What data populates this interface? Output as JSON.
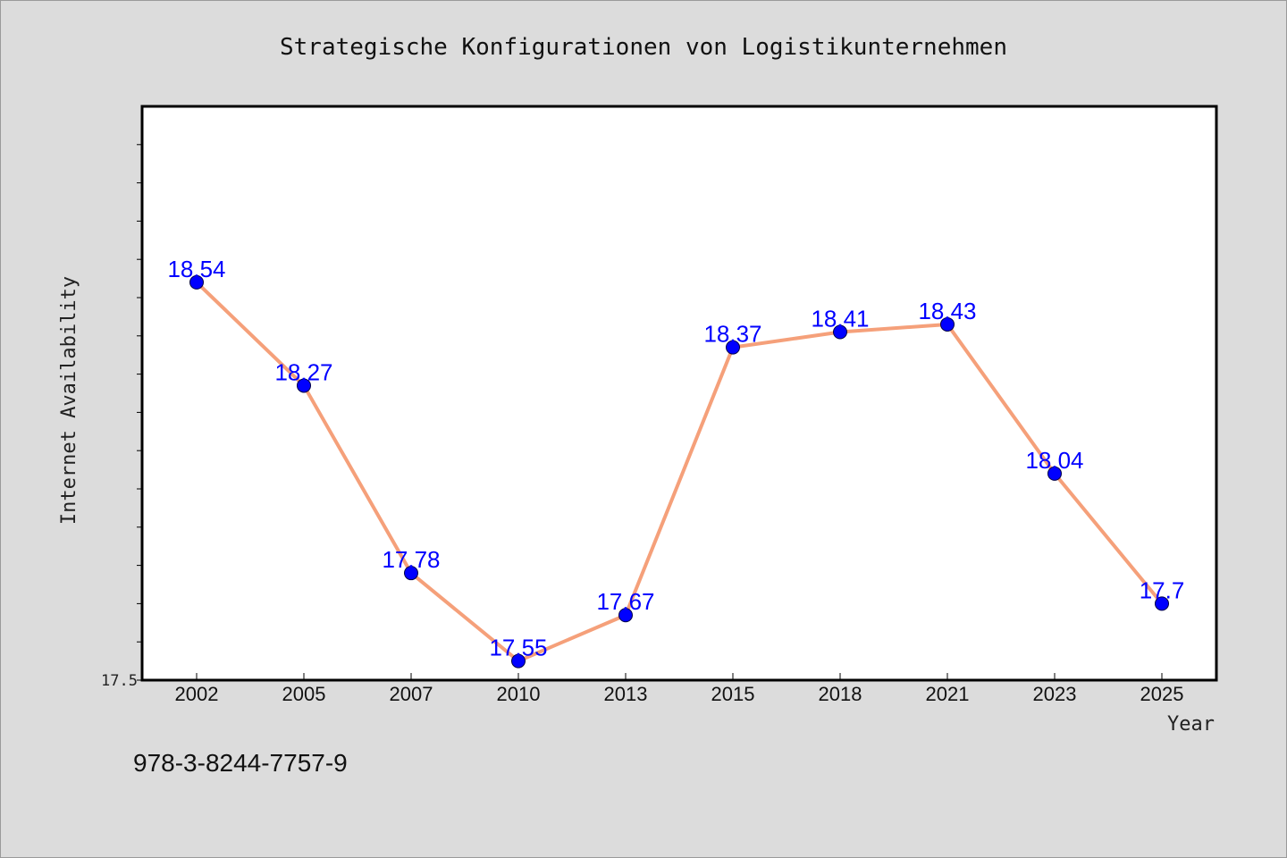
{
  "chart_data": {
    "type": "line",
    "title": "Strategische Konfigurationen von Logistikunternehmen",
    "xlabel": "Year",
    "ylabel": "Internet Availability",
    "categories": [
      "2002",
      "2005",
      "2007",
      "2010",
      "2013",
      "2015",
      "2018",
      "2021",
      "2023",
      "2025"
    ],
    "series": [
      {
        "values": [
          18.54,
          18.27,
          17.78,
          17.55,
          17.67,
          18.37,
          18.41,
          18.43,
          18.04,
          17.7
        ],
        "labels": [
          "18.54",
          "18.27",
          "17.78",
          "17.55",
          "17.67",
          "18.37",
          "18.41",
          "18.43",
          "18.04",
          "17.7"
        ],
        "line_color": "#f5a07a",
        "marker_color": "#0000ff"
      }
    ],
    "ylim": [
      17.5,
      19.0
    ],
    "ytick_labels": [
      "17.5"
    ],
    "grid": false,
    "background": "#dcdcdc",
    "plot_background": "#ffffff"
  },
  "footer": {
    "isbn": "978-3-8244-7757-9"
  }
}
